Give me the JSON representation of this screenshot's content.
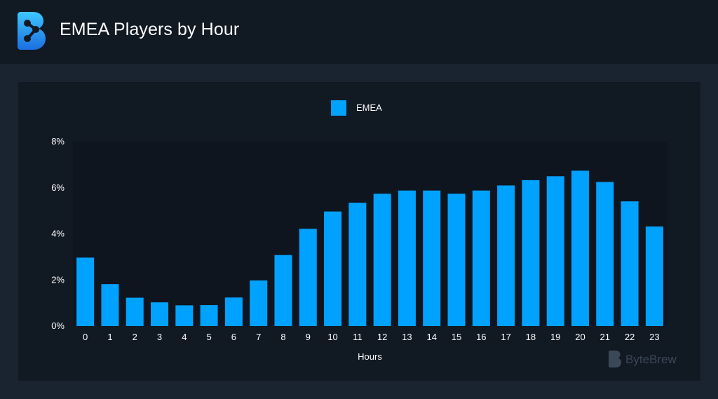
{
  "header": {
    "title": "EMEA Players by Hour",
    "logo_icon": "bytebrew-logo-icon"
  },
  "watermark": {
    "brand": "ByteBrew"
  },
  "colors": {
    "header_bg": "#111923",
    "page_bg": "#1a2330",
    "panel_bg": "#111923",
    "plot_bg": "#0f151e",
    "bar": "#00a2ff",
    "text": "#ffffff",
    "logo_gradient_top": "#3ec6ff",
    "logo_gradient_bottom": "#1b6fe0"
  },
  "chart_data": {
    "type": "bar",
    "categories": [
      "0",
      "1",
      "2",
      "3",
      "4",
      "5",
      "6",
      "7",
      "8",
      "9",
      "10",
      "11",
      "12",
      "13",
      "14",
      "15",
      "16",
      "17",
      "18",
      "19",
      "20",
      "21",
      "22",
      "23"
    ],
    "series": [
      {
        "name": "EMEA",
        "color": "#00a2ff",
        "values": [
          2.97,
          1.82,
          1.23,
          1.03,
          0.9,
          0.91,
          1.24,
          1.98,
          3.08,
          4.22,
          4.97,
          5.35,
          5.74,
          5.88,
          5.88,
          5.74,
          5.88,
          6.1,
          6.33,
          6.5,
          6.74,
          6.25,
          5.41,
          4.32
        ]
      }
    ],
    "xlabel": "Hours",
    "ylabel": "",
    "ylim": [
      0,
      8
    ],
    "yticks": [
      0,
      2,
      4,
      6,
      8
    ],
    "ytick_labels": [
      "0%",
      "2%",
      "4%",
      "6%",
      "8%"
    ],
    "grid": false,
    "legend_position": "top-center"
  }
}
